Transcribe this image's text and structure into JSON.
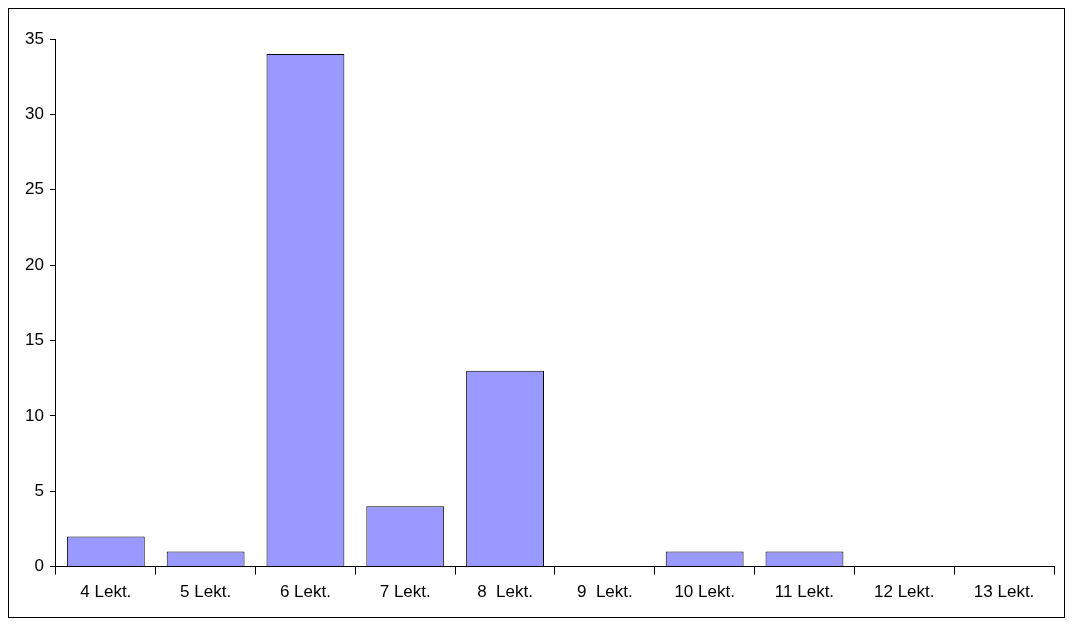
{
  "chart_data": {
    "type": "bar",
    "categories": [
      "4 Lekt.",
      "5 Lekt.",
      "6 Lekt.",
      "7 Lekt.",
      "8  Lekt.",
      "9  Lekt.",
      "10 Lekt.",
      "11 Lekt.",
      "12 Lekt.",
      "13 Lekt."
    ],
    "values": [
      2,
      1,
      34,
      4,
      13,
      0,
      1,
      1,
      0,
      0
    ],
    "color": "#9999ff",
    "ylim": [
      0,
      35
    ],
    "yticks": [
      0,
      5,
      10,
      15,
      20,
      25,
      30,
      35
    ],
    "grid": false,
    "legend": false
  }
}
